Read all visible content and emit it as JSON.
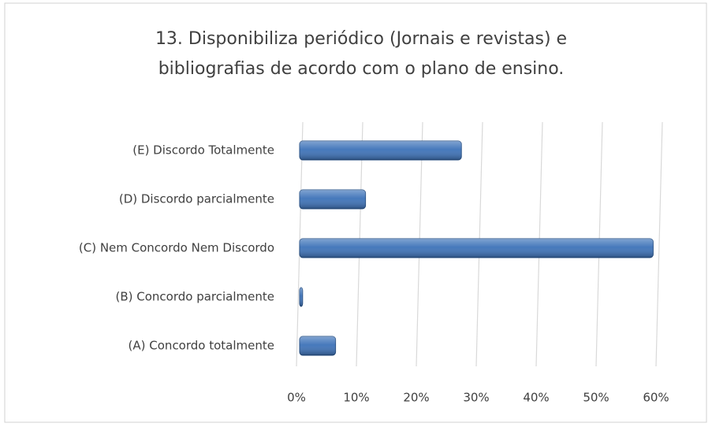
{
  "chart_data": {
    "type": "hbar",
    "title": [
      "13. Disponibiliza periódico (Jornais e revistas) e",
      "bibliografias de acordo com o plano de ensino."
    ],
    "categories": [
      "(A) Concordo totalmente",
      "(B) Concordo parcialmente",
      "(C) Nem Concordo Nem Discordo",
      "(D) Discordo parcialmente",
      "(E) Discordo Totalmente"
    ],
    "values": [
      6,
      0.5,
      59,
      11,
      27
    ],
    "color": "#3d72b8",
    "xlim": [
      0,
      60
    ],
    "xticks": [
      {
        "value": 0,
        "label": "0%"
      },
      {
        "value": 10,
        "label": "10%"
      },
      {
        "value": 20,
        "label": "20%"
      },
      {
        "value": 30,
        "label": "30%"
      },
      {
        "value": 40,
        "label": "40%"
      },
      {
        "value": 50,
        "label": "50%"
      },
      {
        "value": 60,
        "label": "60%"
      }
    ],
    "grid": true
  }
}
